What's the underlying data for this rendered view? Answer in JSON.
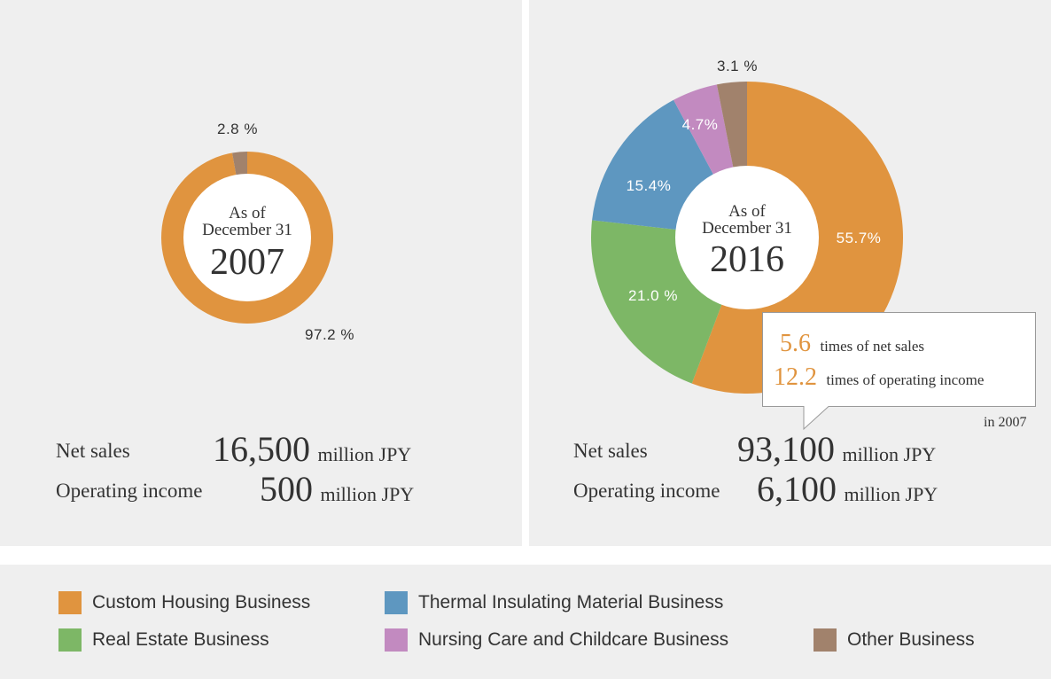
{
  "colors": {
    "custom_housing": "#e0943f",
    "thermal": "#5e97c0",
    "real_estate": "#7db766",
    "nursing": "#c28ac0",
    "other": "#a1826c",
    "panel": "#efefef",
    "highlight": "#e0943f"
  },
  "chart_data": [
    {
      "type": "pie",
      "center_label": {
        "line1": "As of",
        "line2": "December 31",
        "year": "2007"
      },
      "slices": [
        {
          "name": "Custom Housing Business",
          "value": 97.2,
          "label": "97.2 %"
        },
        {
          "name": "Other Business",
          "value": 2.8,
          "label": "2.8 %"
        }
      ]
    },
    {
      "type": "pie",
      "center_label": {
        "line1": "As of",
        "line2": "December 31",
        "year": "2016"
      },
      "slices": [
        {
          "name": "Custom Housing Business",
          "value": 55.7,
          "label": "55.7%"
        },
        {
          "name": "Real Estate Business",
          "value": 21.0,
          "label": "21.0 %"
        },
        {
          "name": "Thermal Insulating Material Business",
          "value": 15.4,
          "label": "15.4%"
        },
        {
          "name": "Nursing Care and Childcare Business",
          "value": 4.7,
          "label": "4.7%"
        },
        {
          "name": "Other Business",
          "value": 3.1,
          "label": "3.1 %"
        }
      ]
    }
  ],
  "left": {
    "net_sales_label": "Net sales",
    "net_sales_value": "16,500",
    "operating_income_label": "Operating income",
    "operating_income_value": "500",
    "unit": "million JPY"
  },
  "right": {
    "net_sales_label": "Net sales",
    "net_sales_value": "93,100",
    "operating_income_label": "Operating income",
    "operating_income_value": "6,100",
    "unit": "million JPY"
  },
  "callout": {
    "line1_num": "5.6",
    "line1_text": "times of net sales",
    "line2_num": "12.2",
    "line2_text": "times of operating income",
    "footnote": "in 2007"
  },
  "legend": [
    {
      "label": "Custom Housing Business",
      "color": "#e0943f"
    },
    {
      "label": "Thermal Insulating Material Business",
      "color": "#5e97c0"
    },
    {
      "label": "Real Estate Business",
      "color": "#7db766"
    },
    {
      "label": "Nursing Care and Childcare Business",
      "color": "#c28ac0"
    },
    {
      "label": "Other Business",
      "color": "#a1826c"
    }
  ]
}
